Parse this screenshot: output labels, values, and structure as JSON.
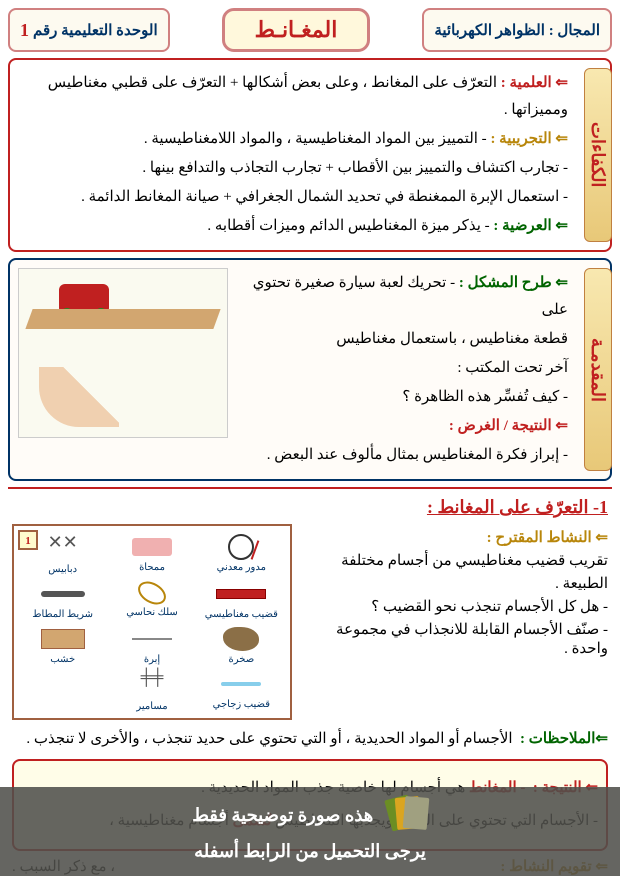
{
  "header": {
    "domain_label": "المجال :",
    "domain_value": "الظواهر الكهربائية",
    "title": "المغـانـط",
    "unit_label": "الوحدة التعليمية رقم",
    "unit_number": "1"
  },
  "competences": {
    "side_label": "الكفاءات",
    "scientific_label": "⇐ العلمية :",
    "scientific_text": "التعرّف على المغانط ، وعلى بعض أشكالها + التعرّف على قطبي مغناطيس ومميزاتها .",
    "experimental_label": "⇐ التجريبية :",
    "exp_line1": "- التمييز بين المواد المغناطيسية ، والمواد اللامغناطيسية .",
    "exp_line2": "- تجارب اكتشاف والتمييز بين الأقطاب + تجارب التجاذب والتدافع بينها .",
    "exp_line3": "- استعمال الإبرة الممغنطة في تحديد الشمال الجغرافي + صيانة المغانط الدائمة .",
    "transversal_label": "⇐ العرضية :",
    "transversal_text": "- يذكر ميزة المغناطيس الدائم وميزات أقطابه ."
  },
  "intro": {
    "side_label": "المقدمـة",
    "problem_label": "⇐ طرح المشكل :",
    "prob_line1": "- تحريك لعبة سيارة صغيرة تحتوي على",
    "prob_line2": "قطعة مغناطيس ، باستعمال مغناطيس",
    "prob_line3": "آخر تحت المكتب :",
    "prob_line4": "- كيف تُفسِّر هذه الظاهرة ؟",
    "result_label": "⇐ النتيجة / الغرض :",
    "result_text": "- إبراز فكرة المغناطيس بمثال مألوف عند البعض ."
  },
  "content": {
    "title": "1- التعرّف على المغانط :",
    "activity_label": "⇐ النشاط المقترح :",
    "act_line1": "تقريب قضيب مغناطيسي من أجسام مختلفة",
    "act_line2": "الطبيعة .",
    "act_line3": "- هل كل الأجسام تنجذب نحو القضيب ؟",
    "act_line4": "- صنّف الأجسام القابلة للانجذاب في مجموعة واحدة .",
    "objects": {
      "corner": "1",
      "items": [
        {
          "label": "مدور معدني",
          "cls": "i-compass"
        },
        {
          "label": "ممحاة",
          "cls": "i-eraser"
        },
        {
          "label": "دبابيس",
          "cls": "i-pins"
        },
        {
          "label": "قضيب مغناطيسي",
          "cls": "i-magnet"
        },
        {
          "label": "سلك نحاسي",
          "cls": "i-wire"
        },
        {
          "label": "شريط المطاط",
          "cls": "i-rubber"
        },
        {
          "label": "صخرة",
          "cls": "i-rock"
        },
        {
          "label": "إبرة",
          "cls": "i-needle"
        },
        {
          "label": "خشب",
          "cls": "i-wood"
        },
        {
          "label": "قضيب زجاجي",
          "cls": "i-glass"
        },
        {
          "label": "مسامير",
          "cls": "i-nails"
        },
        {
          "label": "",
          "cls": ""
        }
      ]
    },
    "obs_label": "⇐الملاحظات :",
    "obs_text": "الأجسام أو المواد الحديدية ، أو التي تحتوي على حديد تنجذب ، والأخرى لا تنجذب .",
    "concl_label": "⇐ النتيجة :",
    "concl_l1_a": "- المغانط",
    "concl_l1_b": " هي أجسام لها خاصية جذب المواد الحديدية .",
    "concl_l2_a": "- الأجسام التي تحتوي على الحديد ويجذبها المغناطيس ",
    "concl_l2_b": "تُسمى",
    "concl_l2_c": " أجسام مغناطيسية ،",
    "eval_label": "⇐ تقويم النشاط :",
    "eval_text": "، مع ذكر السبب ."
  },
  "watermark": {
    "line1": "هذه صورة توضيحية فقط",
    "line2": "يرجى التحميل من الرابط أسفله"
  }
}
